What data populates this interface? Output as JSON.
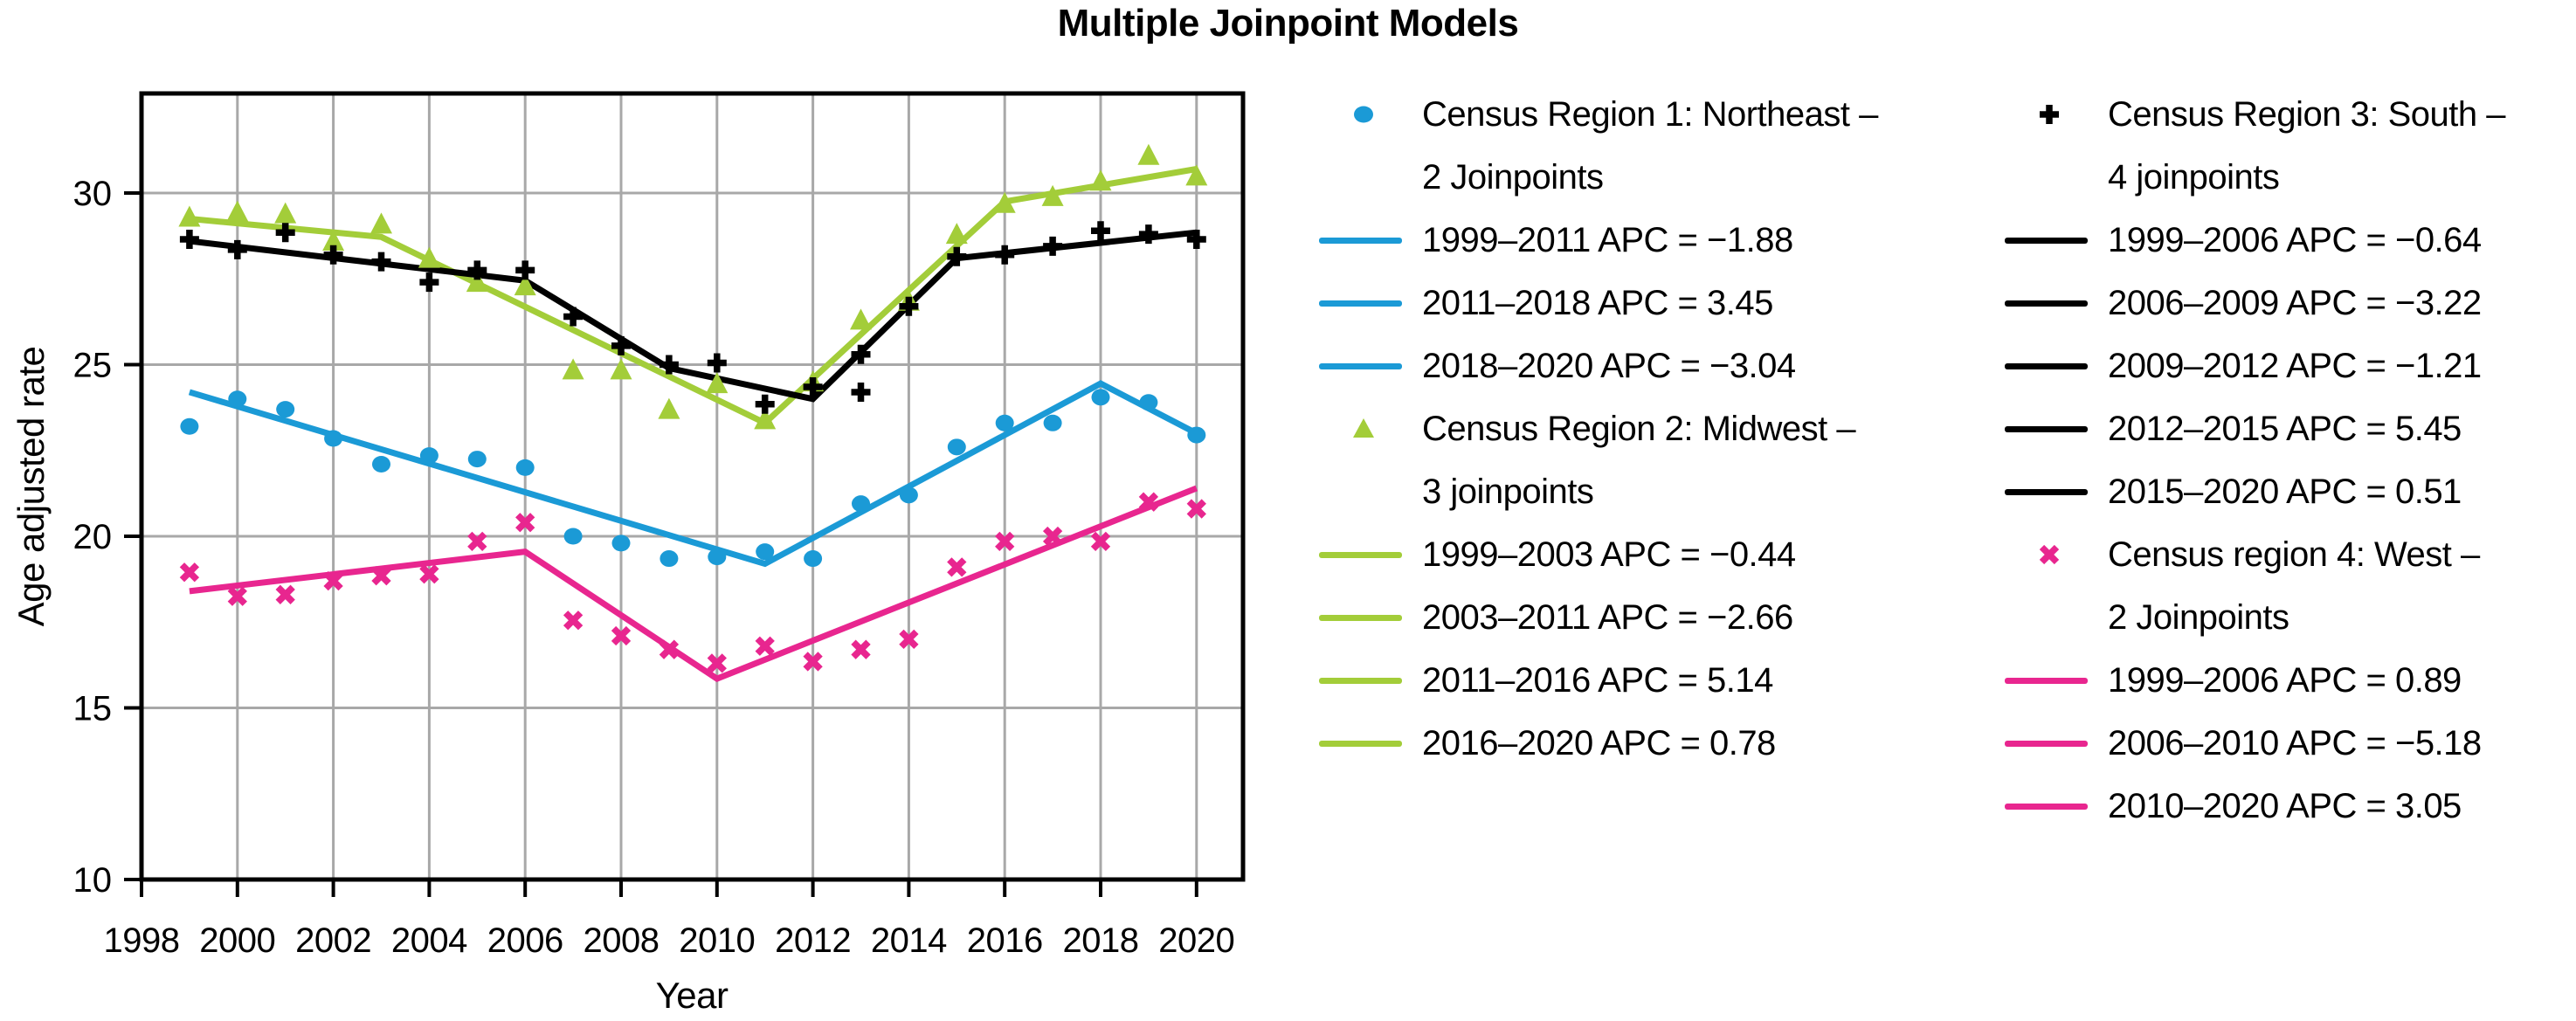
{
  "chart_data": {
    "type": "line",
    "title": "Multiple Joinpoint Models",
    "xlabel": "Year",
    "ylabel": "Age adjusted rate",
    "xlim": [
      1998,
      2021
    ],
    "ylim": [
      10,
      32.9
    ],
    "x_ticks": [
      1998,
      2000,
      2002,
      2004,
      2006,
      2008,
      2010,
      2012,
      2014,
      2016,
      2018,
      2020
    ],
    "x_gridlines": [
      2000,
      2002,
      2004,
      2006,
      2008,
      2010,
      2012,
      2014,
      2016,
      2018,
      2020
    ],
    "y_ticks": [
      10,
      15,
      20,
      25,
      30
    ],
    "y_gridlines": [
      15,
      20,
      25,
      30
    ],
    "grid": true,
    "legend_position": "right",
    "years": [
      1999,
      2000,
      2001,
      2002,
      2003,
      2004,
      2005,
      2006,
      2007,
      2008,
      2009,
      2010,
      2011,
      2012,
      2013,
      2014,
      2015,
      2016,
      2017,
      2018,
      2019,
      2020
    ],
    "series": [
      {
        "name": "Census Region 1: Northeast",
        "joinpoints_label": "2 Joinpoints",
        "marker": "circle",
        "color": "#1b9ad6",
        "observed": [
          23.2,
          24.0,
          23.7,
          22.85,
          22.1,
          22.35,
          22.25,
          22.0,
          20.0,
          19.8,
          19.35,
          19.4,
          19.55,
          19.35,
          20.95,
          21.2,
          22.6,
          23.3,
          23.3,
          24.05,
          23.9,
          22.95
        ],
        "trend": [
          [
            1999,
            24.2
          ],
          [
            2011,
            19.2
          ],
          [
            2018,
            24.45
          ],
          [
            2020,
            23.0
          ]
        ],
        "apc_segments": [
          {
            "range": "1999–2011",
            "apc": -1.88
          },
          {
            "range": "2011–2018",
            "apc": 3.45
          },
          {
            "range": "2018–2020",
            "apc": -3.04
          }
        ]
      },
      {
        "name": "Census Region 2: Midwest",
        "joinpoints_label": "3 joinpoints",
        "marker": "triangle",
        "color": "#a3cd39",
        "observed": [
          29.3,
          29.45,
          29.4,
          28.6,
          29.1,
          28.1,
          27.4,
          27.3,
          24.85,
          24.85,
          23.7,
          24.45,
          23.4,
          24.5,
          26.3,
          26.85,
          28.8,
          29.7,
          29.9,
          30.35,
          31.1,
          30.5
        ],
        "trend": [
          [
            1999,
            29.25
          ],
          [
            2003,
            28.72
          ],
          [
            2011,
            23.3
          ],
          [
            2016,
            29.75
          ],
          [
            2020,
            30.7
          ]
        ],
        "apc_segments": [
          {
            "range": "1999–2003",
            "apc": -0.44
          },
          {
            "range": "2003–2011",
            "apc": -2.66
          },
          {
            "range": "2011–2016",
            "apc": 5.14
          },
          {
            "range": "2016–2020",
            "apc": 0.78
          }
        ]
      },
      {
        "name": "Census Region 3: South",
        "joinpoints_label": "4 joinpoints",
        "marker": "plus",
        "color": "#000000",
        "observed": [
          28.65,
          28.35,
          28.85,
          28.2,
          28.0,
          27.4,
          27.75,
          27.75,
          26.4,
          25.55,
          25.0,
          25.05,
          23.85,
          24.35,
          24.2,
          26.7,
          28.15,
          28.2,
          28.45,
          28.9,
          28.8,
          28.65
        ],
        "extra_markers": [
          [
            2013,
            25.3
          ]
        ],
        "trend": [
          [
            1999,
            28.6
          ],
          [
            2006,
            27.45
          ],
          [
            2009,
            24.9
          ],
          [
            2012,
            24.0
          ],
          [
            2015,
            28.1
          ],
          [
            2020,
            28.85
          ]
        ],
        "apc_segments": [
          {
            "range": "1999–2006",
            "apc": -0.64
          },
          {
            "range": "2006–2009",
            "apc": -3.22
          },
          {
            "range": "2009–2012",
            "apc": -1.21
          },
          {
            "range": "2012–2015",
            "apc": 5.45
          },
          {
            "range": "2015–2020",
            "apc": 0.51
          }
        ]
      },
      {
        "name": "Census region 4: West",
        "joinpoints_label": "2 Joinpoints",
        "marker": "x",
        "color": "#e8268f",
        "observed": [
          18.95,
          18.25,
          18.3,
          18.7,
          18.85,
          18.9,
          19.85,
          20.4,
          17.55,
          17.1,
          16.7,
          16.3,
          16.8,
          16.35,
          16.7,
          17.0,
          19.1,
          19.85,
          20.0,
          19.85,
          21.0,
          20.8
        ],
        "trend": [
          [
            1999,
            18.4
          ],
          [
            2006,
            19.55
          ],
          [
            2010,
            15.85
          ],
          [
            2020,
            21.4
          ]
        ],
        "apc_segments": [
          {
            "range": "1999–2006",
            "apc": 0.89
          },
          {
            "range": "2006–2010",
            "apc": -5.18
          },
          {
            "range": "2010–2020",
            "apc": 3.05
          }
        ]
      }
    ]
  },
  "legend": {
    "columns": [
      {
        "entries": [
          {
            "type": "series",
            "marker": "circle",
            "color": "#1b9ad6",
            "lines": [
              "Census Region 1: Northeast –",
              "2 Joinpoints"
            ]
          },
          {
            "type": "segment",
            "color": "#1b9ad6",
            "label": "1999–2011 APC = −1.88"
          },
          {
            "type": "segment",
            "color": "#1b9ad6",
            "label": "2011–2018 APC = 3.45"
          },
          {
            "type": "segment",
            "color": "#1b9ad6",
            "label": "2018–2020 APC = −3.04"
          },
          {
            "type": "series",
            "marker": "triangle",
            "color": "#a3cd39",
            "lines": [
              "Census Region 2: Midwest –",
              "3 joinpoints"
            ]
          },
          {
            "type": "segment",
            "color": "#a3cd39",
            "label": "1999–2003 APC = −0.44"
          },
          {
            "type": "segment",
            "color": "#a3cd39",
            "label": "2003–2011 APC = −2.66"
          },
          {
            "type": "segment",
            "color": "#a3cd39",
            "label": "2011–2016 APC = 5.14"
          },
          {
            "type": "segment",
            "color": "#a3cd39",
            "label": "2016–2020 APC = 0.78"
          }
        ]
      },
      {
        "entries": [
          {
            "type": "series",
            "marker": "plus",
            "color": "#000000",
            "lines": [
              "Census Region 3: South –",
              "4 joinpoints"
            ]
          },
          {
            "type": "segment",
            "color": "#000000",
            "label": "1999–2006 APC = −0.64"
          },
          {
            "type": "segment",
            "color": "#000000",
            "label": "2006–2009 APC = −3.22"
          },
          {
            "type": "segment",
            "color": "#000000",
            "label": "2009–2012 APC = −1.21"
          },
          {
            "type": "segment",
            "color": "#000000",
            "label": "2012–2015 APC = 5.45"
          },
          {
            "type": "segment",
            "color": "#000000",
            "label": "2015–2020 APC = 0.51"
          },
          {
            "type": "series",
            "marker": "x",
            "color": "#e8268f",
            "lines": [
              "Census region 4: West –",
              "2 Joinpoints"
            ]
          },
          {
            "type": "segment",
            "color": "#e8268f",
            "label": "1999–2006 APC = 0.89"
          },
          {
            "type": "segment",
            "color": "#e8268f",
            "label": "2006–2010 APC = −5.18"
          },
          {
            "type": "segment",
            "color": "#e8268f",
            "label": "2010–2020 APC = 3.05"
          }
        ]
      }
    ]
  },
  "colors": {
    "northeast": "#1b9ad6",
    "midwest": "#a3cd39",
    "south": "#000000",
    "west": "#e8268f",
    "gridline": "#a8a8a8",
    "frame": "#000000",
    "background": "#ffffff"
  }
}
